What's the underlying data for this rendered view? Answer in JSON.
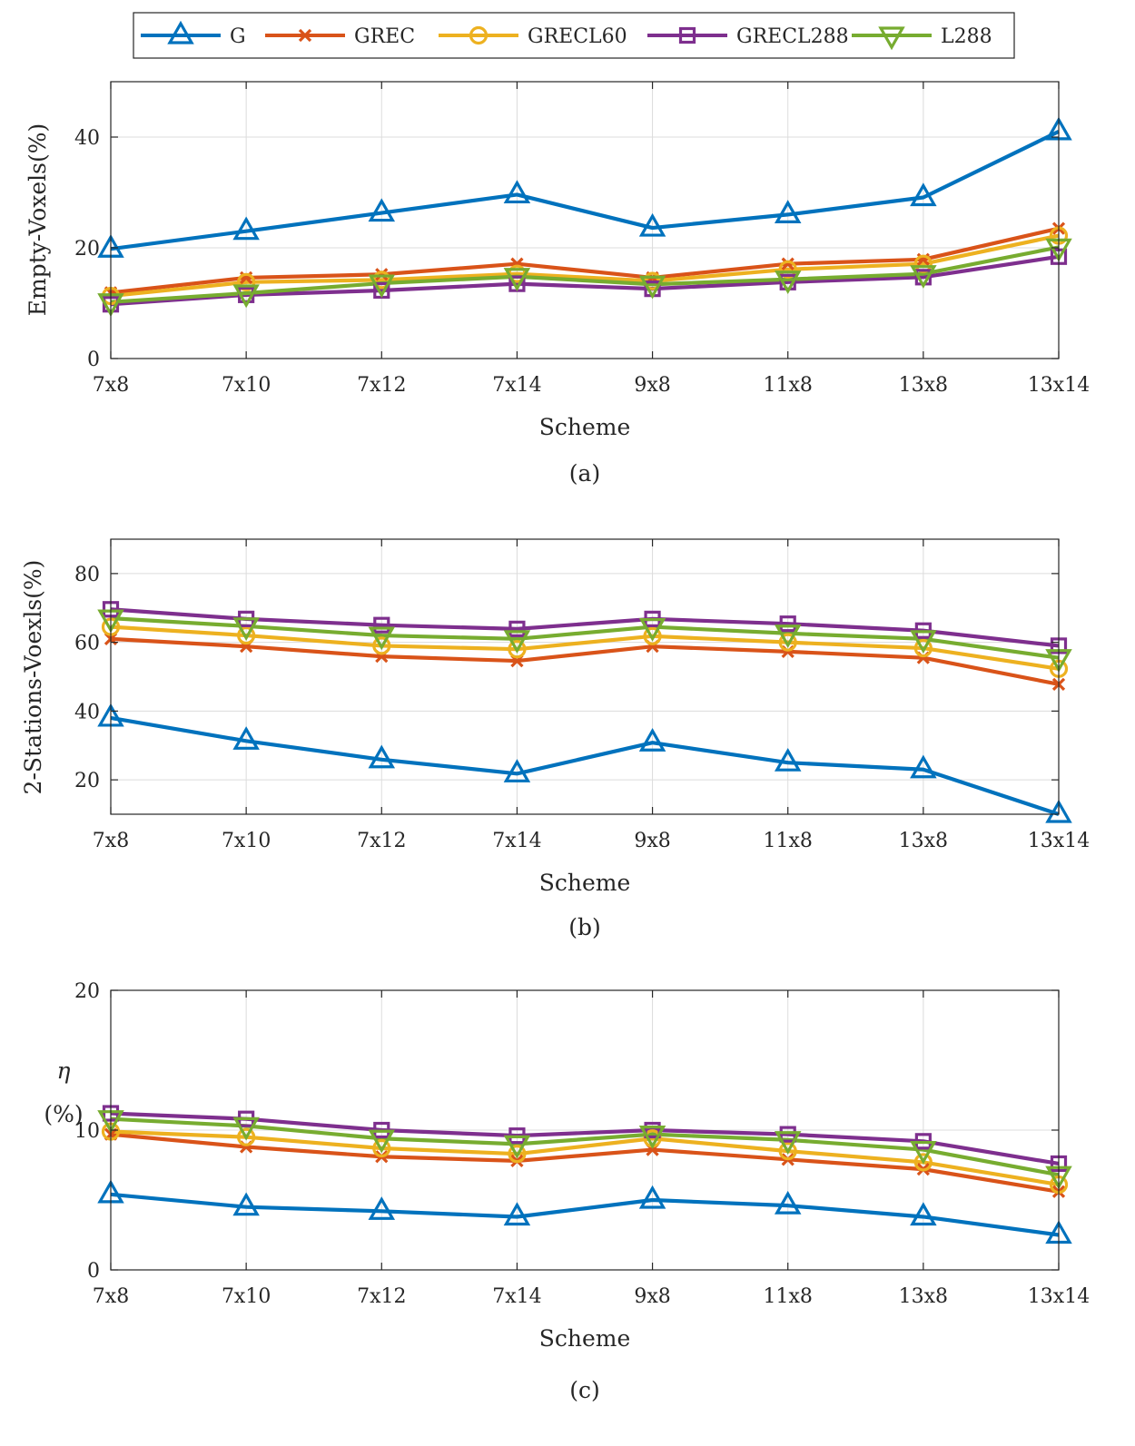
{
  "legend": {
    "entries": [
      {
        "name": "G",
        "color": "#0072BD",
        "marker": "triangle-up"
      },
      {
        "name": "GREC",
        "color": "#D95319",
        "marker": "x"
      },
      {
        "name": "GRECL60",
        "color": "#EDB120",
        "marker": "circle"
      },
      {
        "name": "GRECL288",
        "color": "#7E2F8E",
        "marker": "square"
      },
      {
        "name": "L288",
        "color": "#77AC30",
        "marker": "triangle-down"
      }
    ]
  },
  "chart_data": [
    {
      "type": "line",
      "caption": "(a)",
      "xlabel": "Scheme",
      "ylabel": "Empty-Voxels(%)",
      "ylabel_lines": [],
      "ylim": [
        0,
        50
      ],
      "yticks": [
        0,
        20,
        40
      ],
      "grid": true,
      "categories": [
        "7x8",
        "7x10",
        "7x12",
        "7x14",
        "9x8",
        "11x8",
        "13x8",
        "13x14"
      ],
      "series": [
        {
          "name": "G",
          "values": [
            19.8,
            23.0,
            26.3,
            29.6,
            23.6,
            26.0,
            29.1,
            41.0
          ]
        },
        {
          "name": "GREC",
          "values": [
            11.9,
            14.6,
            15.2,
            17.1,
            14.6,
            17.1,
            17.9,
            23.5
          ]
        },
        {
          "name": "GRECL60",
          "values": [
            11.3,
            13.8,
            14.2,
            15.3,
            14.0,
            16.1,
            17.1,
            22.2
          ]
        },
        {
          "name": "GRECL288",
          "values": [
            9.8,
            11.5,
            12.3,
            13.5,
            12.6,
            13.8,
            14.7,
            18.4
          ]
        },
        {
          "name": "L288",
          "values": [
            10.2,
            11.8,
            13.6,
            14.8,
            13.4,
            14.3,
            15.3,
            20.1
          ]
        }
      ]
    },
    {
      "type": "line",
      "caption": "(b)",
      "xlabel": "Scheme",
      "ylabel": "2-Stations-Voexls(%)",
      "ylabel_lines": [],
      "ylim": [
        10,
        90
      ],
      "yticks": [
        20,
        40,
        60,
        80
      ],
      "grid": true,
      "categories": [
        "7x8",
        "7x10",
        "7x12",
        "7x14",
        "9x8",
        "11x8",
        "13x8",
        "13x14"
      ],
      "series": [
        {
          "name": "G",
          "values": [
            38.0,
            31.3,
            25.9,
            21.8,
            30.8,
            25.0,
            23.0,
            10.0
          ]
        },
        {
          "name": "GREC",
          "values": [
            61.0,
            58.8,
            55.9,
            54.6,
            58.8,
            57.3,
            55.5,
            47.8
          ]
        },
        {
          "name": "GRECL60",
          "values": [
            64.5,
            62.0,
            59.0,
            58.0,
            61.8,
            60.0,
            58.3,
            52.3
          ]
        },
        {
          "name": "GRECL288",
          "values": [
            69.6,
            66.8,
            65.0,
            63.9,
            66.8,
            65.4,
            63.4,
            59.0
          ]
        },
        {
          "name": "L288",
          "values": [
            67.0,
            64.7,
            62.0,
            61.0,
            64.5,
            62.6,
            61.0,
            55.5
          ]
        }
      ]
    },
    {
      "type": "line",
      "caption": "(c)",
      "xlabel": "Scheme",
      "ylabel": "",
      "ylabel_lines": [
        "η",
        "(%)"
      ],
      "ylim": [
        0,
        20
      ],
      "yticks": [
        0,
        10,
        20
      ],
      "grid": true,
      "categories": [
        "7x8",
        "7x10",
        "7x12",
        "7x14",
        "9x8",
        "11x8",
        "13x8",
        "13x14"
      ],
      "series": [
        {
          "name": "G",
          "values": [
            5.4,
            4.5,
            4.2,
            3.8,
            5.0,
            4.6,
            3.8,
            2.5
          ]
        },
        {
          "name": "GREC",
          "values": [
            9.7,
            8.8,
            8.1,
            7.8,
            8.6,
            7.9,
            7.2,
            5.6
          ]
        },
        {
          "name": "GRECL60",
          "values": [
            9.9,
            9.5,
            8.7,
            8.3,
            9.4,
            8.5,
            7.7,
            6.1
          ]
        },
        {
          "name": "GRECL288",
          "values": [
            11.2,
            10.8,
            10.0,
            9.6,
            10.0,
            9.7,
            9.2,
            7.6
          ]
        },
        {
          "name": "L288",
          "values": [
            10.8,
            10.3,
            9.4,
            9.0,
            9.7,
            9.3,
            8.6,
            6.8
          ]
        }
      ]
    }
  ]
}
